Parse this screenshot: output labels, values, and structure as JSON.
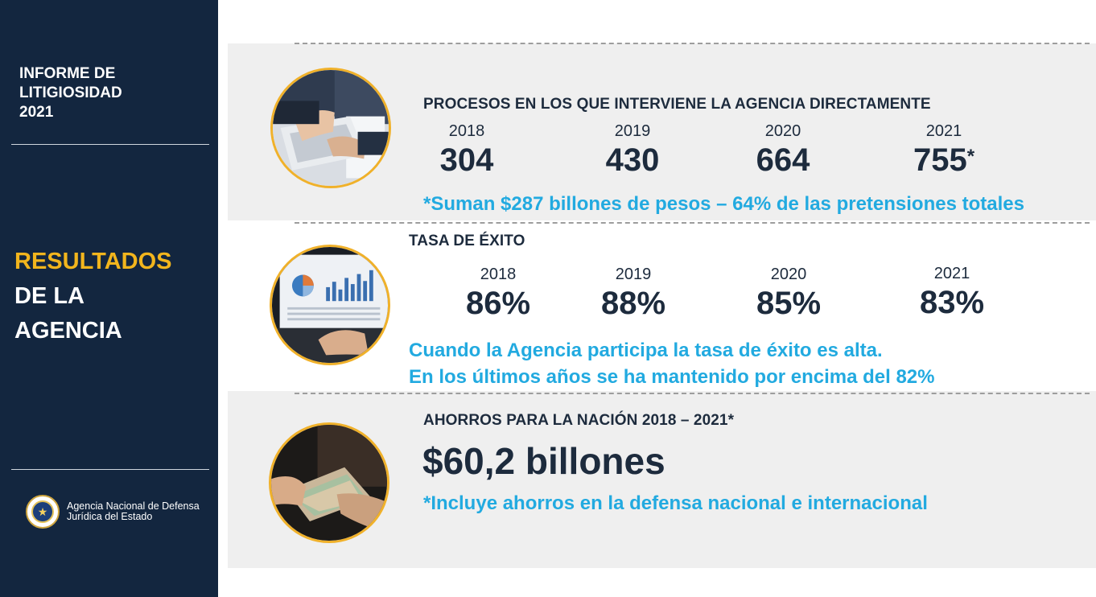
{
  "sidebar": {
    "report_title": [
      "INFORME DE",
      "LITIGIOSIDAD",
      "2021"
    ],
    "section_title_highlight": "RESULTADOS",
    "section_title_rest": [
      "DE LA",
      "AGENCIA"
    ],
    "agency_name": [
      "Agencia Nacional de Defensa",
      "Jurídica del Estado"
    ]
  },
  "colors": {
    "sidebar_bg": "#13263f",
    "accent_yellow": "#f2b51d",
    "accent_cyan": "#22aae0",
    "text_dark": "#1d2b3d",
    "panel_gray": "#efefef"
  },
  "processes": {
    "heading": "PROCESOS EN LOS QUE INTERVIENE LA AGENCIA DIRECTAMENTE",
    "stats": [
      {
        "year": "2018",
        "value": "304",
        "mark": ""
      },
      {
        "year": "2019",
        "value": "430",
        "mark": ""
      },
      {
        "year": "2020",
        "value": "664",
        "mark": ""
      },
      {
        "year": "2021",
        "value": "755",
        "mark": "*"
      }
    ],
    "note": "*Suman $287 billones de pesos – 64% de las pretensiones totales",
    "photo_icon": "laptop-typing-photo"
  },
  "success_rate": {
    "heading": "TASA DE ÉXITO",
    "stats": [
      {
        "year": "2018",
        "value": "86%"
      },
      {
        "year": "2019",
        "value": "88%"
      },
      {
        "year": "2020",
        "value": "85%"
      },
      {
        "year": "2021",
        "value": "83%"
      }
    ],
    "note_lines": [
      "Cuando la Agencia participa la tasa de éxito es alta.",
      "En los últimos años se ha mantenido por encima del 82%"
    ],
    "photo_icon": "laptop-charts-photo"
  },
  "savings": {
    "heading": "AHORROS PARA LA NACIÓN 2018 – 2021*",
    "value": "$60,2 billones",
    "note": "*Incluye ahorros en la defensa nacional e internacional",
    "photo_icon": "money-counting-photo"
  }
}
